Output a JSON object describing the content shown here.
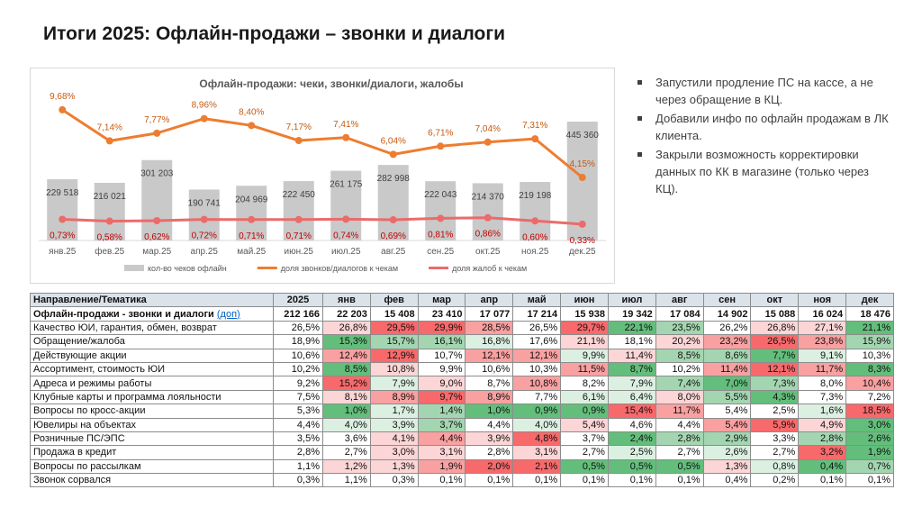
{
  "header": {
    "title": "Итоги 2025: Офлайн-продажи – звонки и диалоги"
  },
  "chart_data": {
    "type": "combo",
    "title": "Офлайн-продажи: чеки, звонки/диалоги, жалобы",
    "categories": [
      "янв.25",
      "фев.25",
      "мар.25",
      "апр.25",
      "май.25",
      "июн.25",
      "июл.25",
      "авг.25",
      "сен.25",
      "окт.25",
      "ноя.25",
      "дек.25"
    ],
    "ylim": [
      0,
      550000
    ],
    "y2lim": [
      -1,
      11
    ],
    "series": [
      {
        "name": "кол-во чеков офлайн",
        "type": "bar",
        "color": "#c9c9c9",
        "label_color": "#404040",
        "values": [
          229518,
          216021,
          301203,
          190741,
          204969,
          222450,
          261175,
          282998,
          222043,
          214370,
          219198,
          445360
        ],
        "value_labels": [
          "229 518",
          "216 021",
          "301 203",
          "190 741",
          "204 969",
          "222 450",
          "261 175",
          "282 998",
          "222 043",
          "214 370",
          "219 198",
          "445 360"
        ]
      },
      {
        "name": "доля звонков/диалогов к чекам",
        "type": "line",
        "axis": "y2",
        "color": "#ed7d31",
        "label_color": "#c55a11",
        "label_side": "above",
        "values": [
          9.68,
          7.14,
          7.77,
          8.96,
          8.4,
          7.17,
          7.41,
          6.04,
          6.71,
          7.04,
          7.31,
          4.15
        ],
        "value_labels": [
          "9,68%",
          "7,14%",
          "7,77%",
          "8,96%",
          "8,40%",
          "7,17%",
          "7,41%",
          "6,04%",
          "6,71%",
          "7,04%",
          "7,31%",
          "4,15%"
        ]
      },
      {
        "name": "доля жалоб к чекам",
        "type": "line",
        "axis": "y2",
        "color": "#eb6b6b",
        "label_color": "#c00000",
        "label_side": "below",
        "values": [
          0.73,
          0.58,
          0.62,
          0.72,
          0.71,
          0.71,
          0.74,
          0.69,
          0.81,
          0.86,
          0.6,
          0.33
        ],
        "value_labels": [
          "0,73%",
          "0,58%",
          "0,62%",
          "0,72%",
          "0,71%",
          "0,71%",
          "0,74%",
          "0,69%",
          "0,81%",
          "0,86%",
          "0,60%",
          "0,33%"
        ]
      }
    ]
  },
  "bullets": [
    "Запустили продление ПС на кассе, а не через обращение в КЦ.",
    "Добавили инфо по офлайн продажам в ЛК клиента.",
    "Закрыли возможность корректировки данных по КК в магазине (только через КЦ)."
  ],
  "table": {
    "header": [
      "Направление/Тематика",
      "2025",
      "янв",
      "фев",
      "мар",
      "апр",
      "май",
      "июн",
      "июл",
      "авг",
      "сен",
      "окт",
      "ноя",
      "дек"
    ],
    "rows": [
      {
        "cells": [
          "Офлайн-продажи - звонки и диалоги",
          "212 166",
          "22 203",
          "15 408",
          "23 410",
          "17 077",
          "17 214",
          "15 938",
          "19 342",
          "17 084",
          "14 902",
          "15 088",
          "16 024",
          "18 476"
        ],
        "link": "(доп)",
        "bold": true
      },
      {
        "cells": [
          "Качество ЮИ, гарантия, обмен, возврат",
          "26,5%",
          "26,8%",
          "29,5%",
          "29,9%",
          "28,5%",
          "26,5%",
          "29,7%",
          "22,1%",
          "23,5%",
          "26,2%",
          "26,8%",
          "27,1%",
          "21,1%"
        ],
        "fills": [
          null,
          "#fcd5d6",
          "#f8696b",
          "#f8696b",
          "#f9a0a1",
          null,
          "#f8696b",
          "#63be7b",
          "#a3d6b0",
          null,
          "#fcd5d6",
          "#fcd5d6",
          "#63be7b"
        ]
      },
      {
        "cells": [
          "Обращение/жалоба",
          "18,9%",
          "15,3%",
          "15,7%",
          "16,1%",
          "16,8%",
          "17,6%",
          "21,1%",
          "18,1%",
          "20,2%",
          "23,2%",
          "26,5%",
          "23,8%",
          "15,9%"
        ],
        "fills": [
          null,
          "#63be7b",
          "#a3d6b0",
          "#a3d6b0",
          "#dcf0e2",
          null,
          "#fcd5d6",
          null,
          "#fcd5d6",
          "#f9a0a1",
          "#f8696b",
          "#f9a0a1",
          "#a3d6b0"
        ]
      },
      {
        "cells": [
          "Действующие акции",
          "10,6%",
          "12,4%",
          "12,9%",
          "10,7%",
          "12,1%",
          "12,1%",
          "9,9%",
          "11,4%",
          "8,5%",
          "8,6%",
          "7,7%",
          "9,1%",
          "10,3%"
        ],
        "fills": [
          null,
          "#f9a0a1",
          "#f8696b",
          null,
          "#f9a0a1",
          "#f9a0a1",
          "#dcf0e2",
          "#fcd5d6",
          "#a3d6b0",
          "#a3d6b0",
          "#63be7b",
          "#dcf0e2",
          null
        ]
      },
      {
        "cells": [
          "Ассортимент, стоимость ЮИ",
          "10,2%",
          "8,5%",
          "10,8%",
          "9,9%",
          "10,6%",
          "10,3%",
          "11,5%",
          "8,7%",
          "10,2%",
          "11,4%",
          "12,1%",
          "11,7%",
          "8,3%"
        ],
        "fills": [
          null,
          "#63be7b",
          "#fcd5d6",
          null,
          null,
          null,
          "#f9a0a1",
          "#63be7b",
          null,
          "#f9a0a1",
          "#f8696b",
          "#f9a0a1",
          "#63be7b"
        ]
      },
      {
        "cells": [
          "Адреса и режимы работы",
          "9,2%",
          "15,2%",
          "7,9%",
          "9,0%",
          "8,7%",
          "10,8%",
          "8,2%",
          "7,9%",
          "7,4%",
          "7,0%",
          "7,3%",
          "8,0%",
          "10,4%"
        ],
        "fills": [
          null,
          "#f8696b",
          "#dcf0e2",
          "#fcd5d6",
          null,
          "#f9a0a1",
          null,
          "#dcf0e2",
          "#a3d6b0",
          "#63be7b",
          "#a3d6b0",
          null,
          "#f9a0a1"
        ]
      },
      {
        "cells": [
          "Клубные карты и программа лояльности",
          "7,5%",
          "8,1%",
          "8,9%",
          "9,7%",
          "8,9%",
          "7,7%",
          "6,1%",
          "6,4%",
          "8,0%",
          "5,5%",
          "4,3%",
          "7,3%",
          "7,2%"
        ],
        "fills": [
          null,
          "#fcd5d6",
          "#f9a0a1",
          "#f8696b",
          "#f9a0a1",
          null,
          "#dcf0e2",
          "#dcf0e2",
          "#fcd5d6",
          "#a3d6b0",
          "#63be7b",
          null,
          null
        ]
      },
      {
        "cells": [
          "Вопросы по кросс-акции",
          "5,3%",
          "1,0%",
          "1,7%",
          "1,4%",
          "1,0%",
          "0,9%",
          "0,9%",
          "15,4%",
          "11,7%",
          "5,4%",
          "2,5%",
          "1,6%",
          "18,5%"
        ],
        "fills": [
          null,
          "#63be7b",
          "#dcf0e2",
          "#a3d6b0",
          "#63be7b",
          "#63be7b",
          "#63be7b",
          "#f8696b",
          "#f9a0a1",
          null,
          null,
          "#dcf0e2",
          "#f8696b"
        ]
      },
      {
        "cells": [
          "Ювелиры на объектах",
          "4,4%",
          "4,0%",
          "3,9%",
          "3,7%",
          "4,4%",
          "4,0%",
          "5,4%",
          "4,6%",
          "4,4%",
          "5,4%",
          "5,9%",
          "4,9%",
          "3,0%"
        ],
        "fills": [
          null,
          "#dcf0e2",
          "#dcf0e2",
          "#a3d6b0",
          null,
          "#dcf0e2",
          "#fcd5d6",
          null,
          null,
          "#f9a0a1",
          "#f8696b",
          "#fcd5d6",
          "#63be7b"
        ]
      },
      {
        "cells": [
          "Розничные ПС/ЭПС",
          "3,5%",
          "3,6%",
          "4,1%",
          "4,4%",
          "3,9%",
          "4,8%",
          "3,7%",
          "2,4%",
          "2,8%",
          "2,9%",
          "3,3%",
          "2,8%",
          "2,6%"
        ],
        "fills": [
          null,
          null,
          "#fcd5d6",
          "#f9a0a1",
          "#fcd5d6",
          "#f8696b",
          null,
          "#63be7b",
          "#a3d6b0",
          "#a3d6b0",
          null,
          "#a3d6b0",
          "#63be7b"
        ]
      },
      {
        "cells": [
          "Продажа в кредит",
          "2,8%",
          "2,7%",
          "3,0%",
          "3,1%",
          "2,8%",
          "3,1%",
          "2,7%",
          "2,5%",
          "2,7%",
          "2,6%",
          "2,7%",
          "3,2%",
          "1,9%"
        ],
        "fills": [
          null,
          null,
          "#fcd5d6",
          "#fcd5d6",
          null,
          "#fcd5d6",
          null,
          "#dcf0e2",
          null,
          "#dcf0e2",
          null,
          "#f8696b",
          "#63be7b"
        ]
      },
      {
        "cells": [
          "Вопросы по рассылкам",
          "1,1%",
          "1,2%",
          "1,3%",
          "1,9%",
          "2,0%",
          "2,1%",
          "0,5%",
          "0,5%",
          "0,5%",
          "1,3%",
          "0,8%",
          "0,4%",
          "0,7%"
        ],
        "fills": [
          null,
          "#fcd5d6",
          "#fcd5d6",
          "#f9a0a1",
          "#f8696b",
          "#f8696b",
          "#63be7b",
          "#63be7b",
          "#63be7b",
          "#fcd5d6",
          "#dcf0e2",
          "#63be7b",
          "#a3d6b0"
        ]
      },
      {
        "cells": [
          "Звонок сорвался",
          "0,3%",
          "1,1%",
          "0,3%",
          "0,1%",
          "0,1%",
          "0,1%",
          "0,1%",
          "0,1%",
          "0,1%",
          "0,4%",
          "0,2%",
          "0,1%",
          "0,1%"
        ]
      }
    ]
  }
}
